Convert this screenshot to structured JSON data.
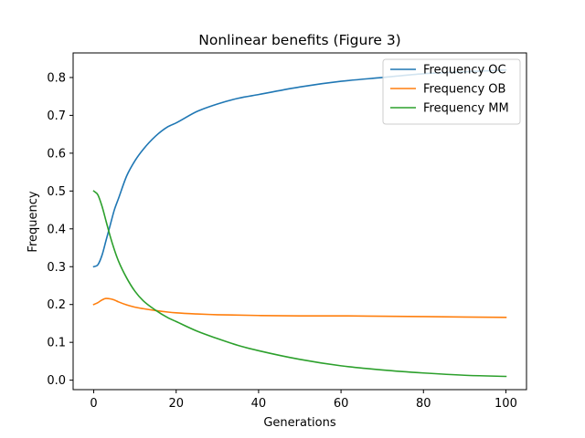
{
  "chart_data": {
    "type": "line",
    "title": "Nonlinear benefits (Figure 3)",
    "xlabel": "Generations",
    "ylabel": "Frequency",
    "xlim": [
      -5,
      105
    ],
    "ylim": [
      -0.025,
      0.865
    ],
    "xticks": [
      0,
      20,
      40,
      60,
      80,
      100
    ],
    "yticks": [
      0.0,
      0.1,
      0.2,
      0.3,
      0.4,
      0.5,
      0.6,
      0.7,
      0.8
    ],
    "xtick_labels": [
      "0",
      "20",
      "40",
      "60",
      "80",
      "100"
    ],
    "ytick_labels": [
      "0.0",
      "0.1",
      "0.2",
      "0.3",
      "0.4",
      "0.5",
      "0.6",
      "0.7",
      "0.8"
    ],
    "grid": false,
    "legend_position": "top-right",
    "series": [
      {
        "name": "Frequency OC",
        "color": "#1f77b4",
        "x": [
          0,
          1,
          2,
          3,
          4,
          5,
          6,
          8,
          10,
          12,
          15,
          18,
          20,
          25,
          30,
          35,
          40,
          50,
          60,
          70,
          80,
          90,
          100
        ],
        "y": [
          0.3,
          0.305,
          0.33,
          0.37,
          0.41,
          0.45,
          0.48,
          0.54,
          0.58,
          0.61,
          0.645,
          0.67,
          0.68,
          0.71,
          0.73,
          0.745,
          0.755,
          0.775,
          0.79,
          0.8,
          0.81,
          0.815,
          0.82
        ]
      },
      {
        "name": "Frequency OB",
        "color": "#ff7f0e",
        "x": [
          0,
          1,
          2,
          3,
          4,
          5,
          6,
          8,
          10,
          12,
          15,
          18,
          20,
          25,
          30,
          40,
          50,
          60,
          70,
          80,
          90,
          100
        ],
        "y": [
          0.2,
          0.205,
          0.212,
          0.216,
          0.215,
          0.212,
          0.207,
          0.199,
          0.193,
          0.189,
          0.184,
          0.18,
          0.178,
          0.175,
          0.173,
          0.171,
          0.17,
          0.17,
          0.169,
          0.168,
          0.167,
          0.166
        ]
      },
      {
        "name": "Frequency MM",
        "color": "#2ca02c",
        "x": [
          0,
          1,
          2,
          3,
          4,
          5,
          6,
          8,
          10,
          12,
          15,
          18,
          20,
          25,
          30,
          35,
          40,
          50,
          60,
          70,
          80,
          90,
          100
        ],
        "y": [
          0.5,
          0.49,
          0.46,
          0.42,
          0.38,
          0.345,
          0.315,
          0.27,
          0.235,
          0.21,
          0.185,
          0.165,
          0.155,
          0.13,
          0.11,
          0.092,
          0.078,
          0.055,
          0.038,
          0.027,
          0.019,
          0.013,
          0.01
        ]
      }
    ]
  }
}
